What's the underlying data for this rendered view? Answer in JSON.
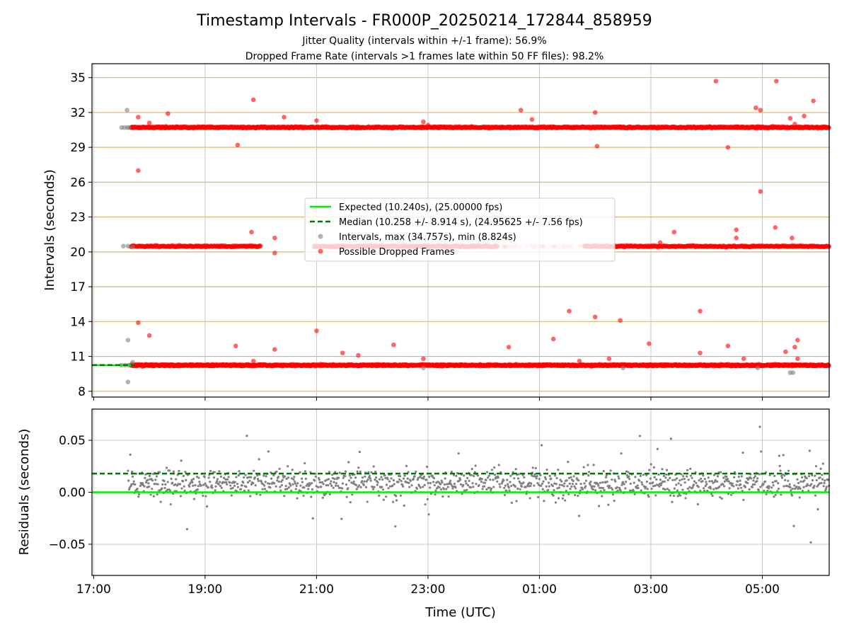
{
  "title": "Timestamp Intervals - FR000P_20250214_172844_858959",
  "subtitle_jitter": "Jitter Quality (intervals within +/-1 frame): 56.9%",
  "subtitle_dropped": "Dropped Frame Rate (intervals >1 frames late within 50 FF files): 98.2%",
  "colors": {
    "expected": "#00ee00",
    "median": "#007700",
    "intervals": "#808080",
    "dropped": "#ff0000",
    "hgrid": "#d4b870",
    "vgrid": "#c8c8c8"
  },
  "chart_data": [
    {
      "type": "scatter",
      "panel": "top",
      "ylabel": "Intervals (seconds)",
      "ylim": [
        7.5,
        36.2
      ],
      "xlim_hours": [
        16.97,
        30.2
      ],
      "yticks": [
        "8",
        "11",
        "14",
        "17",
        "20",
        "23",
        "26",
        "29",
        "32",
        "35"
      ],
      "ytick_values": [
        8,
        11,
        14,
        17,
        20,
        23,
        26,
        29,
        32,
        35
      ],
      "grid": "horizontal lines at y ticks, vertical lines at x ticks",
      "legend_position": "center",
      "legend": [
        "Expected (10.240s), (25.00000 fps)",
        "Median (10.258 +/- 8.914 s), (24.95625 +/- 7.56 fps)",
        "Intervals, max (34.757s), min (8.824s)",
        "Possible Dropped Frames"
      ],
      "expected_interval": 10.24,
      "median_interval": 10.258,
      "bands": [
        {
          "y": 10.24,
          "x_range": [
            "17:40",
            "06:10"
          ]
        },
        {
          "y": 20.48,
          "x_range": [
            "17:40",
            "06:10"
          ]
        },
        {
          "y": 30.72,
          "x_range": [
            "17:40",
            "06:10"
          ]
        }
      ],
      "gray_points": [
        {
          "x": "17:30",
          "y": 30.7
        },
        {
          "x": "17:33",
          "y": 30.7
        },
        {
          "x": "17:36",
          "y": 30.7
        },
        {
          "x": "17:38",
          "y": 30.7
        },
        {
          "x": "17:36",
          "y": 32.2
        },
        {
          "x": "17:32",
          "y": 20.5
        },
        {
          "x": "17:37",
          "y": 20.5
        },
        {
          "x": "17:42",
          "y": 20.4
        },
        {
          "x": "17:37",
          "y": 12.4
        },
        {
          "x": "17:30",
          "y": 10.25
        },
        {
          "x": "17:34",
          "y": 10.25
        },
        {
          "x": "17:38",
          "y": 10.25
        },
        {
          "x": "17:42",
          "y": 10.5
        },
        {
          "x": "17:37",
          "y": 8.8
        },
        {
          "x": "22:55",
          "y": 10.0
        },
        {
          "x": "02:30",
          "y": 10.0
        },
        {
          "x": "05:30",
          "y": 9.6
        },
        {
          "x": "05:33",
          "y": 9.6
        },
        {
          "x": "04:55",
          "y": 10.0
        }
      ],
      "dropped_outliers": [
        {
          "x": "17:48",
          "y": 31.6
        },
        {
          "x": "18:00",
          "y": 31.1
        },
        {
          "x": "18:20",
          "y": 31.9
        },
        {
          "x": "19:35",
          "y": 29.2
        },
        {
          "x": "19:52",
          "y": 33.1
        },
        {
          "x": "20:25",
          "y": 31.6
        },
        {
          "x": "21:00",
          "y": 31.3
        },
        {
          "x": "22:55",
          "y": 31.2
        },
        {
          "x": "23:00",
          "y": 30.9
        },
        {
          "x": "00:40",
          "y": 32.2
        },
        {
          "x": "00:52",
          "y": 31.4
        },
        {
          "x": "02:00",
          "y": 32.0
        },
        {
          "x": "02:02",
          "y": 29.1
        },
        {
          "x": "04:10",
          "y": 34.7
        },
        {
          "x": "04:23",
          "y": 29.0
        },
        {
          "x": "04:53",
          "y": 32.4
        },
        {
          "x": "04:58",
          "y": 32.2
        },
        {
          "x": "05:15",
          "y": 34.7
        },
        {
          "x": "05:30",
          "y": 31.5
        },
        {
          "x": "05:35",
          "y": 31.0
        },
        {
          "x": "05:45",
          "y": 31.7
        },
        {
          "x": "05:55",
          "y": 33.0
        },
        {
          "x": "17:48",
          "y": 27.0
        },
        {
          "x": "19:50",
          "y": 21.7
        },
        {
          "x": "20:15",
          "y": 21.2
        },
        {
          "x": "20:15",
          "y": 19.9
        },
        {
          "x": "03:10",
          "y": 20.8
        },
        {
          "x": "03:25",
          "y": 21.7
        },
        {
          "x": "04:32",
          "y": 21.9
        },
        {
          "x": "04:32",
          "y": 21.2
        },
        {
          "x": "04:58",
          "y": 25.2
        },
        {
          "x": "05:14",
          "y": 22.1
        },
        {
          "x": "05:32",
          "y": 21.2
        },
        {
          "x": "17:48",
          "y": 13.9
        },
        {
          "x": "18:00",
          "y": 12.8
        },
        {
          "x": "19:33",
          "y": 11.9
        },
        {
          "x": "19:52",
          "y": 10.6
        },
        {
          "x": "20:15",
          "y": 11.6
        },
        {
          "x": "21:00",
          "y": 13.2
        },
        {
          "x": "21:28",
          "y": 11.3
        },
        {
          "x": "21:45",
          "y": 11.1
        },
        {
          "x": "22:23",
          "y": 12.0
        },
        {
          "x": "22:55",
          "y": 10.8
        },
        {
          "x": "00:27",
          "y": 11.8
        },
        {
          "x": "01:15",
          "y": 12.5
        },
        {
          "x": "01:32",
          "y": 14.9
        },
        {
          "x": "02:00",
          "y": 14.4
        },
        {
          "x": "02:15",
          "y": 10.8
        },
        {
          "x": "02:27",
          "y": 14.1
        },
        {
          "x": "02:58",
          "y": 12.1
        },
        {
          "x": "03:53",
          "y": 14.9
        },
        {
          "x": "03:53",
          "y": 11.3
        },
        {
          "x": "04:23",
          "y": 11.9
        },
        {
          "x": "04:40",
          "y": 10.8
        },
        {
          "x": "05:25",
          "y": 11.4
        },
        {
          "x": "05:35",
          "y": 11.8
        },
        {
          "x": "05:38",
          "y": 12.4
        },
        {
          "x": "05:38",
          "y": 10.8
        },
        {
          "x": "01:43",
          "y": 10.6
        }
      ]
    },
    {
      "type": "scatter",
      "panel": "bottom",
      "xlabel": "Time (UTC)",
      "ylabel": "Residuals (seconds)",
      "ylim": [
        -0.08,
        0.08
      ],
      "yticks": [
        "0.05",
        "0.00",
        "−0.05"
      ],
      "ytick_values": [
        0.05,
        0.0,
        -0.05
      ],
      "xticks": [
        "17:00",
        "19:00",
        "21:00",
        "23:00",
        "01:00",
        "03:00",
        "05:00"
      ],
      "xtick_hours": [
        17,
        19,
        21,
        23,
        25,
        27,
        29
      ],
      "expected_residual": 0.0,
      "median_residual": 0.018,
      "residual_points": "approx. 1300 gray points between 17:30 and 06:10, mostly within -0.02 to +0.04 seconds, centered near +0.01 seconds"
    }
  ]
}
